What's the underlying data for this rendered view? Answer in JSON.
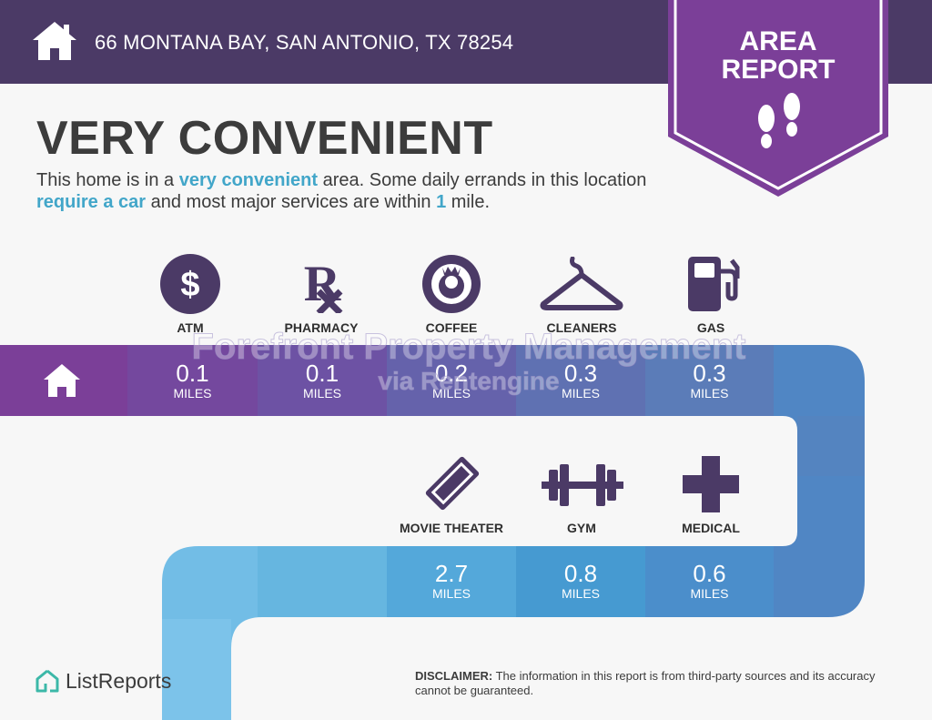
{
  "header": {
    "address": "66 MONTANA BAY, SAN ANTONIO, TX 78254",
    "home_icon": "home-icon"
  },
  "badge": {
    "line1": "AREA",
    "line2": "REPORT",
    "icon": "footsteps-icon"
  },
  "heading": "VERY CONVENIENT",
  "summary": {
    "part1": "This home is in a ",
    "hl1": "very convenient",
    "part2": " area. Some daily errands in this location ",
    "hl2": "require a car",
    "part3": " and most major services are within ",
    "hl3": "1",
    "part4": " mile."
  },
  "row1": [
    {
      "label": "ATM",
      "distance": "0.1",
      "unit": "MILES",
      "icon": "dollar-icon"
    },
    {
      "label": "PHARMACY",
      "distance": "0.1",
      "unit": "MILES",
      "icon": "rx-icon"
    },
    {
      "label": "COFFEE",
      "distance": "0.2",
      "unit": "MILES",
      "icon": "coffee-logo-icon"
    },
    {
      "label": "CLEANERS",
      "distance": "0.3",
      "unit": "MILES",
      "icon": "hanger-icon"
    },
    {
      "label": "GAS",
      "distance": "0.3",
      "unit": "MILES",
      "icon": "gas-pump-icon"
    }
  ],
  "row2": [
    {
      "label": "MOVIE THEATER",
      "distance": "2.7",
      "unit": "MILES",
      "icon": "ticket-icon"
    },
    {
      "label": "GYM",
      "distance": "0.8",
      "unit": "MILES",
      "icon": "dumbbell-icon"
    },
    {
      "label": "MEDICAL",
      "distance": "0.6",
      "unit": "MILES",
      "icon": "medical-cross-icon"
    }
  ],
  "watermark": {
    "line1": "Forefront Property Management",
    "line2": "via Rentengine"
  },
  "brand": "ListReports",
  "disclaimer": {
    "label": "DISCLAIMER:",
    "text": " The information in this report is from third-party sources and its accuracy cannot be guaranteed."
  },
  "colors": {
    "header": "#4b3a66",
    "badge": "#7b3f98",
    "highlight": "#42a6c9",
    "icon": "#4b3a66"
  }
}
